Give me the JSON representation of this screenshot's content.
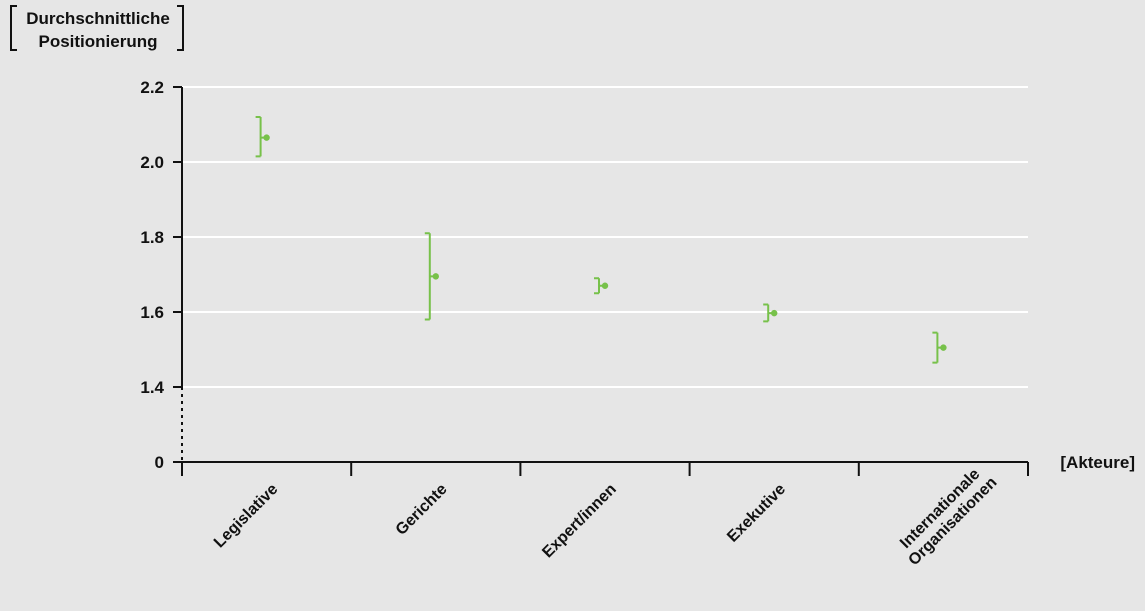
{
  "chart_data": {
    "type": "scatter",
    "ylabel_lines": [
      "Durchschnittliche",
      "Positionierung"
    ],
    "xlabel": "[Akteure]",
    "y_ticks": [
      "2.2",
      "2.0",
      "1.8",
      "1.6",
      "1.4",
      "0"
    ],
    "ylim": [
      1.4,
      2.2
    ],
    "y_axis_break": true,
    "grid": true,
    "categories": [
      [
        "Legislative"
      ],
      [
        "Gerichte"
      ],
      [
        "Expert/innen"
      ],
      [
        "Exekutive"
      ],
      [
        "Internationale",
        "Organisationen"
      ]
    ],
    "series": [
      {
        "mean": [
          2.065,
          1.695,
          1.67,
          1.597,
          1.505
        ],
        "lower": [
          2.015,
          1.58,
          1.65,
          1.575,
          1.465
        ],
        "upper": [
          2.12,
          1.81,
          1.69,
          1.62,
          1.545
        ]
      }
    ],
    "colors": {
      "marker": "#77c14a",
      "grid": "#ffffff",
      "axis": "#111111",
      "background": "#e6e6e6"
    }
  }
}
